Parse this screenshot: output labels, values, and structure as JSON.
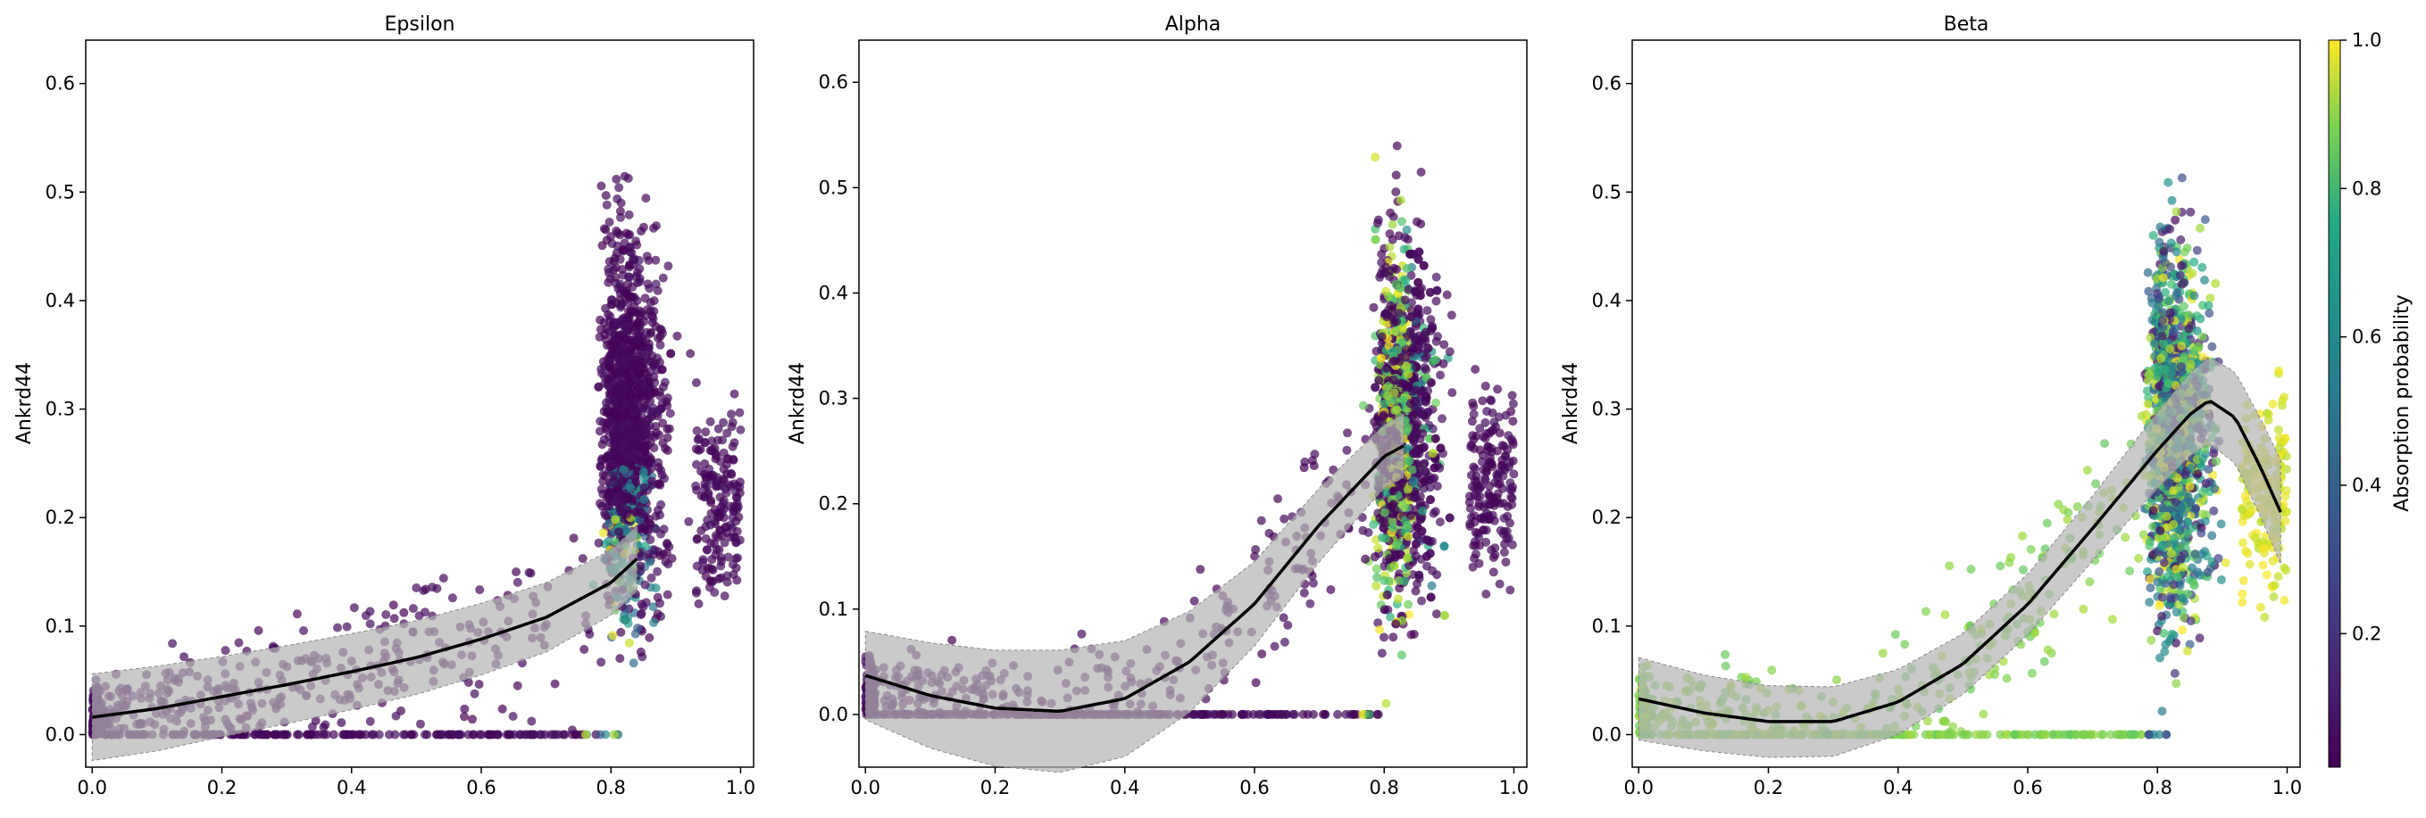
{
  "chart_data": [
    {
      "type": "scatter",
      "title": "Epsilon",
      "xlabel": "",
      "ylabel": "Ankrd44",
      "xlim": [
        -0.01,
        1.02
      ],
      "ylim": [
        -0.03,
        0.64
      ],
      "xticks": [
        "0.0",
        "0.2",
        "0.4",
        "0.6",
        "0.8",
        "1.0"
      ],
      "yticks": [
        "0.0",
        "0.1",
        "0.2",
        "0.3",
        "0.4",
        "0.5",
        "0.6"
      ],
      "color_mode": "mostly low absorption (dark purple); some blue/green/yellow points near x=0.8",
      "trend": {
        "x": [
          0.0,
          0.1,
          0.2,
          0.3,
          0.4,
          0.5,
          0.6,
          0.7,
          0.8,
          0.84
        ],
        "y": [
          0.016,
          0.024,
          0.035,
          0.046,
          0.058,
          0.071,
          0.088,
          0.108,
          0.14,
          0.162
        ]
      },
      "band_halfwidth": [
        0.04,
        0.039,
        0.037,
        0.036,
        0.035,
        0.034,
        0.033,
        0.032,
        0.03,
        0.03
      ]
    },
    {
      "type": "scatter",
      "title": "Alpha",
      "xlabel": "",
      "ylabel": "Ankrd44",
      "xlim": [
        -0.01,
        1.02
      ],
      "ylim": [
        -0.05,
        0.64
      ],
      "xticks": [
        "0.0",
        "0.2",
        "0.4",
        "0.6",
        "0.8",
        "1.0"
      ],
      "yticks": [
        "0.0",
        "0.1",
        "0.2",
        "0.3",
        "0.4",
        "0.5",
        "0.6"
      ],
      "color_mode": "mostly dark purple; green/yellow points in dense cluster around x=0.80",
      "trend": {
        "x": [
          0.0,
          0.1,
          0.2,
          0.3,
          0.4,
          0.5,
          0.6,
          0.7,
          0.8,
          0.83
        ],
        "y": [
          0.037,
          0.018,
          0.006,
          0.003,
          0.015,
          0.05,
          0.105,
          0.18,
          0.245,
          0.255
        ]
      },
      "band_halfwidth": [
        0.042,
        0.05,
        0.055,
        0.058,
        0.055,
        0.048,
        0.04,
        0.035,
        0.03,
        0.03
      ]
    },
    {
      "type": "scatter",
      "title": "Beta",
      "xlabel": "",
      "ylabel": "Ankrd44",
      "xlim": [
        -0.01,
        1.02
      ],
      "ylim": [
        -0.03,
        0.64
      ],
      "xticks": [
        "0.0",
        "0.2",
        "0.4",
        "0.6",
        "0.8",
        "1.0"
      ],
      "yticks": [
        "0.0",
        "0.1",
        "0.2",
        "0.3",
        "0.4",
        "0.5",
        "0.6"
      ],
      "color_mode": "mostly green (~0.7-0.8 absorption); yellow points at x>0.9; mixed colors near x=0.85",
      "trend": {
        "x": [
          0.0,
          0.1,
          0.2,
          0.3,
          0.4,
          0.5,
          0.6,
          0.7,
          0.8,
          0.85,
          0.88,
          0.92,
          0.96,
          0.99
        ],
        "y": [
          0.033,
          0.02,
          0.012,
          0.012,
          0.03,
          0.065,
          0.12,
          0.19,
          0.262,
          0.295,
          0.308,
          0.292,
          0.245,
          0.205
        ]
      },
      "band_halfwidth": [
        0.038,
        0.035,
        0.033,
        0.032,
        0.03,
        0.028,
        0.028,
        0.03,
        0.035,
        0.038,
        0.04,
        0.042,
        0.045,
        0.048
      ]
    }
  ],
  "colorbar": {
    "label": "Absorption probability",
    "ticks": [
      "0.2",
      "0.4",
      "0.6",
      "0.8",
      "1.0"
    ],
    "tick_values": [
      0.2,
      0.4,
      0.6,
      0.8,
      1.0
    ],
    "range": [
      0.02,
      1.0
    ],
    "colormap": "viridis"
  }
}
